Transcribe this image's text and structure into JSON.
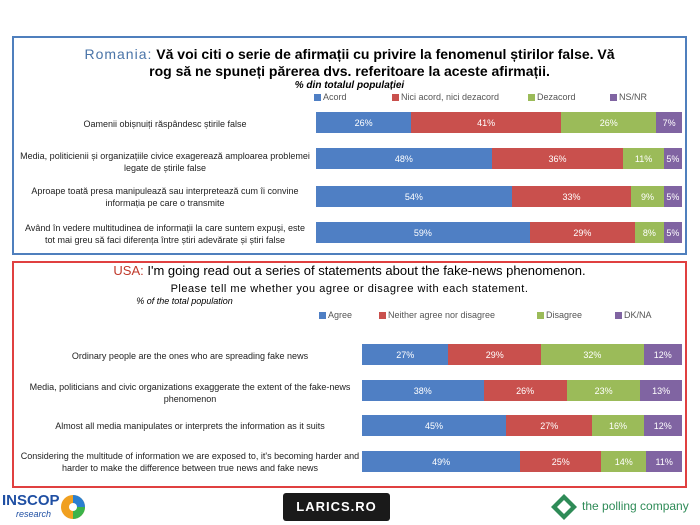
{
  "colors": {
    "agree": "#4f7fc4",
    "neither": "#c9504d",
    "disagree": "#9bbb59",
    "dk": "#8064a2"
  },
  "romania": {
    "country": "Romania:",
    "title_line1": "Vă voi citi o serie de afirmații cu privire la fenomenul știrilor false. Vă",
    "title_line2": "rog să ne spuneți părerea dvs. referitoare la aceste afirmații.",
    "subtitle": "% din totalul populației",
    "legend": [
      "Acord",
      "Nici acord, nici dezacord",
      "Dezacord",
      "NS/NR"
    ]
  },
  "usa": {
    "country": "USA:",
    "title_line1": "I'm going read out a series of statements about the fake-news phenomenon.",
    "title_line2": "Please tell me whether you agree or disagree with each statement.",
    "subtitle": "% of the total population",
    "legend": [
      "Agree",
      "Neither agree nor disagree",
      "Disagree",
      "DK/NA"
    ]
  },
  "logos": {
    "inscop_1": "INSCOP",
    "inscop_2": "research",
    "larics": "LARICS.RO",
    "polling": "the polling company"
  },
  "chart_data": [
    {
      "type": "bar",
      "stacked": true,
      "orientation": "horizontal",
      "title": "Romania: Vă voi citi o serie de afirmații cu privire la fenomenul știrilor false. Vă rog să ne spuneți părerea dvs. referitoare la aceste afirmații.",
      "subtitle": "% din totalul populației",
      "legend_position": "top",
      "categories": [
        "Oamenii obișnuiți răspândesc știrile false",
        "Media, politicienii și organizațiile civice exagerează amploarea problemei legate de știrile false",
        "Aproape toată presa manipulează sau interpretează cum îi convine informația pe care o transmite",
        "Având în vedere multitudinea de informații la care suntem expuși, este tot mai greu să faci diferența între știri adevărate și știri false"
      ],
      "series": [
        {
          "name": "Acord",
          "values": [
            26,
            48,
            54,
            59
          ]
        },
        {
          "name": "Nici acord, nici dezacord",
          "values": [
            41,
            36,
            33,
            29
          ]
        },
        {
          "name": "Dezacord",
          "values": [
            26,
            11,
            9,
            8
          ]
        },
        {
          "name": "NS/NR",
          "values": [
            7,
            5,
            5,
            5
          ]
        }
      ]
    },
    {
      "type": "bar",
      "stacked": true,
      "orientation": "horizontal",
      "title": "USA: I'm going read out a series of statements about the fake-news phenomenon. Please tell me whether you agree or disagree with each statement.",
      "subtitle": "% of the total population",
      "legend_position": "top",
      "categories": [
        "Ordinary people are the ones who are spreading fake news",
        "Media, politicians and civic organizations exaggerate the extent of the fake-news phenomenon",
        "Almost all media manipulates or interprets the information as it suits",
        "Considering the multitude of information we are exposed to, it's becoming harder and harder to make the difference between true news and fake news"
      ],
      "series": [
        {
          "name": "Agree",
          "values": [
            27,
            38,
            45,
            49
          ]
        },
        {
          "name": "Neither agree nor disagree",
          "values": [
            29,
            26,
            27,
            25
          ]
        },
        {
          "name": "Disagree",
          "values": [
            32,
            23,
            16,
            14
          ]
        },
        {
          "name": "DK/NA",
          "values": [
            12,
            13,
            12,
            11
          ]
        }
      ]
    }
  ]
}
